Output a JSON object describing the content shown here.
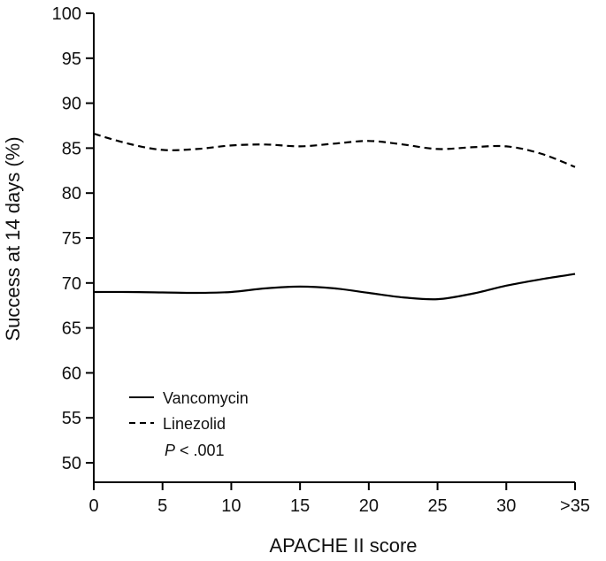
{
  "chart_data": {
    "type": "line",
    "xlabel": "APACHE II score",
    "ylabel": "Success at 14 days (%)",
    "ylim": [
      50,
      100
    ],
    "x_ticks": [
      "0",
      "5",
      "10",
      "15",
      "20",
      "25",
      "30",
      ">35"
    ],
    "y_ticks": [
      "50",
      "55",
      "60",
      "65",
      "70",
      "75",
      "80",
      "85",
      "90",
      "95",
      "100"
    ],
    "grid": false,
    "legend_position": "bottom-left",
    "annotation": {
      "italic": "P",
      "text": " < .001"
    },
    "series": [
      {
        "name": "Vancomycin",
        "line_style": "solid",
        "color": "#000000",
        "points": [
          [
            0,
            69.0
          ],
          [
            2.5,
            69.0
          ],
          [
            5,
            68.95
          ],
          [
            7.5,
            68.9
          ],
          [
            10,
            69.0
          ],
          [
            12.5,
            69.4
          ],
          [
            15,
            69.6
          ],
          [
            17.5,
            69.4
          ],
          [
            20,
            68.9
          ],
          [
            22.5,
            68.4
          ],
          [
            25,
            68.2
          ],
          [
            27.5,
            68.8
          ],
          [
            30,
            69.7
          ],
          [
            32.5,
            70.4
          ],
          [
            35,
            71.0
          ]
        ]
      },
      {
        "name": "Linezolid",
        "line_style": "dashed",
        "color": "#000000",
        "points": [
          [
            0,
            86.6
          ],
          [
            2.5,
            85.5
          ],
          [
            5,
            84.8
          ],
          [
            7.5,
            84.9
          ],
          [
            10,
            85.3
          ],
          [
            12.5,
            85.4
          ],
          [
            15,
            85.2
          ],
          [
            17.5,
            85.5
          ],
          [
            20,
            85.8
          ],
          [
            22.5,
            85.4
          ],
          [
            25,
            84.9
          ],
          [
            27.5,
            85.1
          ],
          [
            30,
            85.2
          ],
          [
            32.5,
            84.4
          ],
          [
            35,
            82.9
          ]
        ]
      }
    ]
  }
}
